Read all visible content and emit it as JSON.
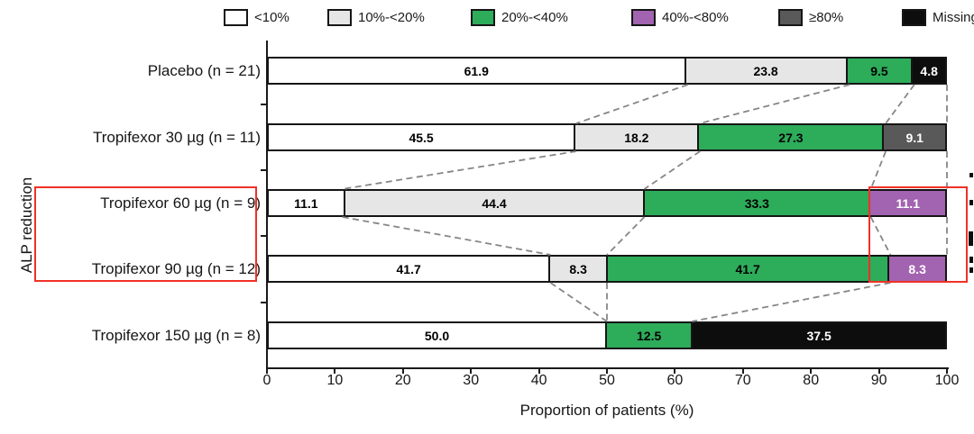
{
  "chart_data": {
    "type": "bar",
    "variant": "horizontal-stacked",
    "title": "",
    "xlabel": "Proportion of patients (%)",
    "ylabel": "ALP reduction",
    "xlim": [
      0,
      100
    ],
    "x_ticks": [
      0,
      10,
      20,
      30,
      40,
      50,
      60,
      70,
      80,
      90,
      100
    ],
    "grid": false,
    "legend_position": "top",
    "categories": [
      "Placebo (n = 21)",
      "Tropifexor 30 µg (n = 11)",
      "Tropifexor 60 µg (n = 9)",
      "Tropifexor 90 µg (n = 12)",
      "Tropifexor 150 µg (n = 8)"
    ],
    "series": [
      {
        "name": "<10%",
        "color": "#ffffff",
        "label_color": "#000000",
        "values": [
          61.9,
          45.5,
          11.1,
          41.7,
          50.0
        ]
      },
      {
        "name": "10%-<20%",
        "color": "#e6e6e6",
        "label_color": "#000000",
        "values": [
          23.8,
          18.2,
          44.4,
          8.3,
          0
        ]
      },
      {
        "name": "20%-<40%",
        "color": "#2dac5a",
        "label_color": "#000000",
        "values": [
          9.5,
          27.3,
          33.3,
          41.7,
          12.5
        ]
      },
      {
        "name": "40%-<80%",
        "color": "#a263b0",
        "label_color": "#ffffff",
        "values": [
          0,
          0,
          11.1,
          8.3,
          0
        ]
      },
      {
        "name": "≥80%",
        "color": "#595959",
        "label_color": "#ffffff",
        "values": [
          0,
          9.1,
          0,
          0,
          0
        ]
      },
      {
        "name": "Missing",
        "color": "#0d0d0d",
        "label_color": "#ffffff",
        "values": [
          4.8,
          0,
          0,
          0,
          37.5
        ]
      }
    ],
    "connectors": [
      [
        [
          61.9,
          45.5
        ],
        [
          85.7,
          63.7
        ],
        [
          95.2,
          91.0
        ],
        [
          100,
          100
        ]
      ],
      [
        [
          45.5,
          11.1
        ],
        [
          63.7,
          55.5
        ],
        [
          91.0,
          88.8
        ],
        [
          100,
          100
        ]
      ],
      [
        [
          11.1,
          41.7
        ],
        [
          55.5,
          50.0
        ],
        [
          88.8,
          91.7
        ],
        [
          100,
          100
        ]
      ],
      [
        [
          41.7,
          50.0
        ],
        [
          50.0,
          50.0
        ],
        [
          91.7,
          62.5
        ]
      ]
    ]
  },
  "legend": [
    {
      "label": "<10%"
    },
    {
      "label": "10%-<20%"
    },
    {
      "label": "20%-<40%"
    },
    {
      "label": "40%-<80%"
    },
    {
      "label": "≥80%"
    },
    {
      "label": "Missing"
    }
  ],
  "annotations": {
    "highlight_color": "#f03127",
    "boxes": [
      {
        "name": "dose-60-90-labels-highlight"
      },
      {
        "name": "purple-segments-highlight"
      }
    ]
  }
}
